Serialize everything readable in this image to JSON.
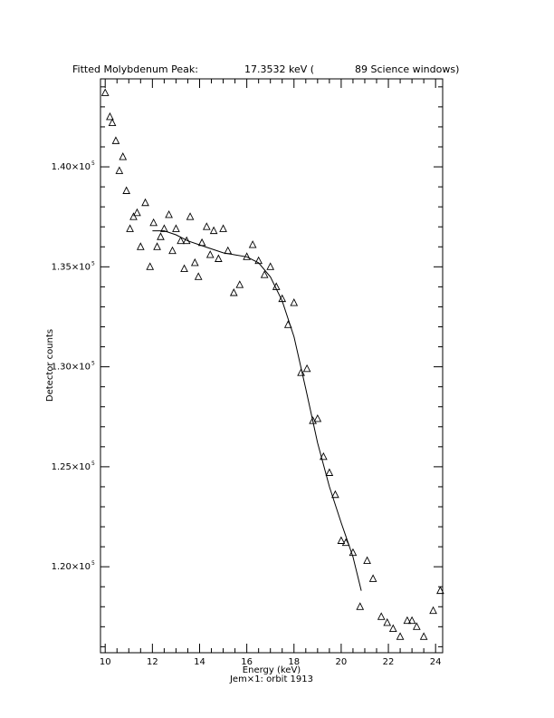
{
  "chart_data": {
    "type": "scatter",
    "title": {
      "left": "Fitted Molybdenum Peak:",
      "center": "17.3532 keV (",
      "right": "89 Science windows)"
    },
    "xlabel": "Energy (keV)",
    "ylabel": "Detector counts",
    "footer": "Jem×1: orbit 1913",
    "xlim": [
      9.8,
      24.3
    ],
    "ylim": [
      1.157,
      1.444
    ],
    "x_ticks": [
      10,
      12,
      14,
      16,
      18,
      20,
      22,
      24
    ],
    "x_tick_labels": [
      "10",
      "12",
      "14",
      "16",
      "18",
      "20",
      "22",
      "24"
    ],
    "y_ticks": [
      1.2,
      1.25,
      1.3,
      1.35,
      1.4
    ],
    "y_tick_labels": [
      "1.20×10",
      "1.25×10",
      "1.30×10",
      "1.35×10",
      "1.40×10"
    ],
    "y_tick_exponent": "5",
    "y_scale_note": "values in units of 1e5 counts",
    "series": [
      {
        "marker": "triangle",
        "points": [
          [
            10.0,
            1.437
          ],
          [
            10.2,
            1.425
          ],
          [
            10.3,
            1.422
          ],
          [
            10.45,
            1.413
          ],
          [
            10.6,
            1.398
          ],
          [
            10.75,
            1.405
          ],
          [
            10.9,
            1.388
          ],
          [
            11.05,
            1.369
          ],
          [
            11.2,
            1.375
          ],
          [
            11.35,
            1.377
          ],
          [
            11.5,
            1.36
          ],
          [
            11.7,
            1.382
          ],
          [
            11.9,
            1.35
          ],
          [
            12.05,
            1.372
          ],
          [
            12.2,
            1.36
          ],
          [
            12.35,
            1.365
          ],
          [
            12.5,
            1.369
          ],
          [
            12.7,
            1.376
          ],
          [
            12.85,
            1.358
          ],
          [
            13.0,
            1.369
          ],
          [
            13.2,
            1.363
          ],
          [
            13.35,
            1.349
          ],
          [
            13.45,
            1.363
          ],
          [
            13.6,
            1.375
          ],
          [
            13.8,
            1.352
          ],
          [
            13.95,
            1.345
          ],
          [
            14.1,
            1.362
          ],
          [
            14.3,
            1.37
          ],
          [
            14.45,
            1.356
          ],
          [
            14.6,
            1.368
          ],
          [
            14.8,
            1.354
          ],
          [
            15.0,
            1.369
          ],
          [
            15.2,
            1.358
          ],
          [
            15.45,
            1.337
          ],
          [
            15.7,
            1.341
          ],
          [
            16.0,
            1.355
          ],
          [
            16.25,
            1.361
          ],
          [
            16.5,
            1.353
          ],
          [
            16.75,
            1.346
          ],
          [
            17.0,
            1.35
          ],
          [
            17.25,
            1.34
          ],
          [
            17.5,
            1.334
          ],
          [
            17.75,
            1.321
          ],
          [
            18.0,
            1.332
          ],
          [
            18.3,
            1.297
          ],
          [
            18.55,
            1.299
          ],
          [
            18.8,
            1.273
          ],
          [
            19.0,
            1.274
          ],
          [
            19.25,
            1.255
          ],
          [
            19.5,
            1.247
          ],
          [
            19.75,
            1.236
          ],
          [
            20.0,
            1.213
          ],
          [
            20.2,
            1.212
          ],
          [
            20.5,
            1.207
          ],
          [
            20.8,
            1.18
          ],
          [
            21.1,
            1.203
          ],
          [
            21.35,
            1.194
          ],
          [
            21.7,
            1.175
          ],
          [
            21.95,
            1.172
          ],
          [
            22.2,
            1.169
          ],
          [
            22.5,
            1.165
          ],
          [
            22.8,
            1.173
          ],
          [
            23.0,
            1.173
          ],
          [
            23.2,
            1.17
          ],
          [
            23.5,
            1.165
          ],
          [
            23.9,
            1.178
          ],
          [
            24.2,
            1.188
          ]
        ]
      },
      {
        "marker": "line",
        "points": [
          [
            12.0,
            1.368
          ],
          [
            12.5,
            1.368
          ],
          [
            13.0,
            1.366
          ],
          [
            13.5,
            1.363
          ],
          [
            14.0,
            1.361
          ],
          [
            14.5,
            1.359
          ],
          [
            15.0,
            1.357
          ],
          [
            15.5,
            1.356
          ],
          [
            16.0,
            1.355
          ],
          [
            16.5,
            1.352
          ],
          [
            17.0,
            1.345
          ],
          [
            17.5,
            1.333
          ],
          [
            18.0,
            1.315
          ],
          [
            18.5,
            1.289
          ],
          [
            19.0,
            1.262
          ],
          [
            19.5,
            1.24
          ],
          [
            20.0,
            1.222
          ],
          [
            20.5,
            1.205
          ],
          [
            20.85,
            1.188
          ]
        ]
      }
    ]
  }
}
